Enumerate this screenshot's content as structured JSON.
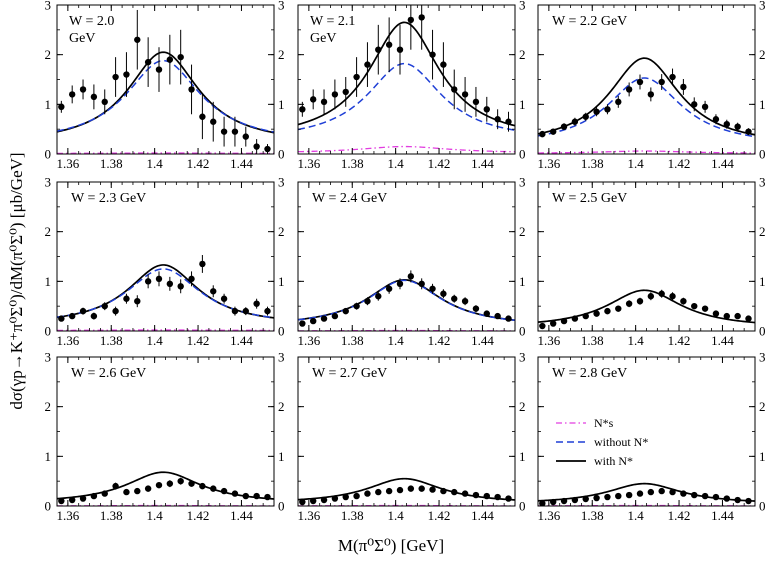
{
  "figure": {
    "x_axis_label": "M(π⁰Σ⁰) [GeV]",
    "y_axis_label": "dσ(γp→K⁺π⁰Σ⁰)/dM(π⁰Σ⁰) [μb/GeV]",
    "legend": {
      "placement": "inside panel W = 2.8 GeV, right",
      "entries": [
        {
          "label": "N*s",
          "style": "dash-dot",
          "color": "#e23ee0"
        },
        {
          "label": "without N*",
          "style": "dashed",
          "color": "#1f3fd6"
        },
        {
          "label": "with N*",
          "style": "solid",
          "color": "#000000"
        }
      ]
    }
  },
  "chart_data": {
    "type": "line",
    "layout": "3x3 grid of panels sharing axes",
    "xlim": [
      1.355,
      1.455
    ],
    "ylim": [
      0,
      3
    ],
    "x_ticks": [
      "1.36",
      "1.38",
      "1.4",
      "1.42",
      "1.44"
    ],
    "x_tick_values": [
      1.36,
      1.38,
      1.4,
      1.42,
      1.44
    ],
    "y_ticks": [
      "0",
      "1",
      "2",
      "3"
    ],
    "y_tick_values": [
      0,
      1,
      2,
      3
    ],
    "data_x": [
      1.357,
      1.362,
      1.367,
      1.372,
      1.377,
      1.382,
      1.387,
      1.392,
      1.397,
      1.402,
      1.407,
      1.412,
      1.417,
      1.422,
      1.427,
      1.432,
      1.437,
      1.442,
      1.447,
      1.452
    ],
    "panels": [
      {
        "label": "W = 2.0 GeV",
        "label_lines": [
          "W = 2.0",
          "GeV"
        ],
        "data_y": [
          0.95,
          1.2,
          1.3,
          1.15,
          1.05,
          1.55,
          1.6,
          2.3,
          1.85,
          1.7,
          1.9,
          1.95,
          1.3,
          0.75,
          0.65,
          0.45,
          0.45,
          0.35,
          0.15,
          0.1
        ],
        "data_err": [
          0.12,
          0.18,
          0.2,
          0.25,
          0.25,
          0.4,
          0.45,
          0.6,
          0.5,
          0.45,
          0.5,
          0.55,
          0.5,
          0.45,
          0.4,
          0.3,
          0.3,
          0.2,
          0.15,
          0.1
        ],
        "series": [
          {
            "name": "with N*",
            "peak": 2.05,
            "base": 0.18,
            "width": 0.02
          },
          {
            "name": "without N*",
            "peak": 1.88,
            "base": 0.2,
            "width": 0.021
          },
          {
            "name": "N*s",
            "peak": 0.02,
            "base": 0.01,
            "width": 0.03
          }
        ]
      },
      {
        "label": "W = 2.1 GeV",
        "label_lines": [
          "W = 2.1",
          "GeV"
        ],
        "data_y": [
          0.9,
          1.1,
          1.05,
          1.2,
          1.25,
          1.55,
          1.8,
          2.1,
          2.2,
          2.1,
          2.7,
          2.75,
          2.0,
          1.8,
          1.3,
          1.2,
          1.05,
          0.9,
          0.7,
          0.65
        ],
        "data_err": [
          0.15,
          0.2,
          0.25,
          0.3,
          0.3,
          0.4,
          0.45,
          0.5,
          0.55,
          0.5,
          0.6,
          0.65,
          0.5,
          0.45,
          0.4,
          0.35,
          0.3,
          0.25,
          0.2,
          0.2
        ],
        "series": [
          {
            "name": "with N*",
            "peak": 2.65,
            "base": 0.25,
            "width": 0.02
          },
          {
            "name": "without N*",
            "peak": 1.82,
            "base": 0.25,
            "width": 0.021
          },
          {
            "name": "N*s",
            "peak": 0.15,
            "base": 0.02,
            "width": 0.025
          }
        ]
      },
      {
        "label": "W = 2.2 GeV",
        "label_lines": [
          "W = 2.2 GeV"
        ],
        "data_y": [
          0.4,
          0.45,
          0.55,
          0.65,
          0.75,
          0.85,
          0.9,
          1.05,
          1.3,
          1.45,
          1.2,
          1.45,
          1.55,
          1.35,
          1.0,
          0.95,
          0.7,
          0.6,
          0.55,
          0.45
        ],
        "data_err": [
          0.06,
          0.06,
          0.07,
          0.08,
          0.08,
          0.09,
          0.1,
          0.12,
          0.14,
          0.15,
          0.14,
          0.16,
          0.17,
          0.16,
          0.14,
          0.12,
          0.1,
          0.09,
          0.08,
          0.07
        ],
        "series": [
          {
            "name": "with N*",
            "peak": 1.93,
            "base": 0.15,
            "width": 0.02
          },
          {
            "name": "without N*",
            "peak": 1.53,
            "base": 0.15,
            "width": 0.021
          },
          {
            "name": "N*s",
            "peak": 0.06,
            "base": 0.01,
            "width": 0.025
          }
        ]
      },
      {
        "label": "W = 2.3 GeV",
        "label_lines": [
          "W = 2.3 GeV"
        ],
        "data_y": [
          0.25,
          0.3,
          0.4,
          0.3,
          0.5,
          0.4,
          0.65,
          0.6,
          1.0,
          1.05,
          0.95,
          0.9,
          1.05,
          1.35,
          0.8,
          0.65,
          0.4,
          0.4,
          0.55,
          0.4
        ],
        "data_err": [
          0.05,
          0.06,
          0.07,
          0.07,
          0.08,
          0.09,
          0.1,
          0.12,
          0.14,
          0.15,
          0.14,
          0.14,
          0.15,
          0.18,
          0.12,
          0.1,
          0.09,
          0.08,
          0.1,
          0.09
        ],
        "series": [
          {
            "name": "with N*",
            "peak": 1.33,
            "base": 0.1,
            "width": 0.02
          },
          {
            "name": "without N*",
            "peak": 1.25,
            "base": 0.1,
            "width": 0.021
          },
          {
            "name": "N*s",
            "peak": 0.02,
            "base": 0.01,
            "width": 0.03
          }
        ]
      },
      {
        "label": "W = 2.4 GeV",
        "label_lines": [
          "W = 2.4 GeV"
        ],
        "data_y": [
          0.15,
          0.2,
          0.25,
          0.3,
          0.4,
          0.5,
          0.6,
          0.7,
          0.85,
          0.95,
          1.1,
          0.95,
          0.85,
          0.75,
          0.65,
          0.6,
          0.45,
          0.35,
          0.3,
          0.25
        ],
        "data_err": [
          0.04,
          0.04,
          0.05,
          0.05,
          0.06,
          0.07,
          0.08,
          0.09,
          0.1,
          0.11,
          0.12,
          0.11,
          0.1,
          0.09,
          0.08,
          0.08,
          0.07,
          0.06,
          0.05,
          0.05
        ],
        "series": [
          {
            "name": "with N*",
            "peak": 1.03,
            "base": 0.08,
            "width": 0.021
          },
          {
            "name": "without N*",
            "peak": 1.02,
            "base": 0.08,
            "width": 0.021
          },
          {
            "name": "N*s",
            "peak": 0.01,
            "base": 0.0,
            "width": 0.03
          }
        ]
      },
      {
        "label": "W = 2.5 GeV",
        "label_lines": [
          "W = 2.5 GeV"
        ],
        "data_y": [
          0.1,
          0.15,
          0.2,
          0.25,
          0.3,
          0.35,
          0.4,
          0.45,
          0.55,
          0.6,
          0.7,
          0.75,
          0.7,
          0.6,
          0.5,
          0.45,
          0.35,
          0.3,
          0.3,
          0.25
        ],
        "data_err": [
          0.03,
          0.03,
          0.04,
          0.04,
          0.05,
          0.05,
          0.06,
          0.06,
          0.07,
          0.07,
          0.08,
          0.08,
          0.08,
          0.07,
          0.06,
          0.06,
          0.05,
          0.05,
          0.05,
          0.04
        ],
        "series": [
          {
            "name": "with N*",
            "peak": 0.82,
            "base": 0.06,
            "width": 0.021
          }
        ]
      },
      {
        "label": "W = 2.6 GeV",
        "label_lines": [
          "W = 2.6 GeV"
        ],
        "data_y": [
          0.1,
          0.12,
          0.15,
          0.2,
          0.25,
          0.4,
          0.28,
          0.3,
          0.35,
          0.42,
          0.45,
          0.5,
          0.45,
          0.4,
          0.35,
          0.3,
          0.25,
          0.2,
          0.2,
          0.18
        ],
        "data_err": [
          0.03,
          0.03,
          0.04,
          0.04,
          0.05,
          0.07,
          0.05,
          0.05,
          0.06,
          0.06,
          0.07,
          0.07,
          0.06,
          0.06,
          0.05,
          0.05,
          0.04,
          0.04,
          0.04,
          0.03
        ],
        "series": [
          {
            "name": "with N*",
            "peak": 0.68,
            "base": 0.05,
            "width": 0.021
          },
          {
            "name": "N*s",
            "peak": 0.01,
            "base": 0.0,
            "width": 0.03
          }
        ]
      },
      {
        "label": "W = 2.7 GeV",
        "label_lines": [
          "W = 2.7 GeV"
        ],
        "data_y": [
          0.08,
          0.1,
          0.12,
          0.15,
          0.18,
          0.2,
          0.25,
          0.28,
          0.3,
          0.32,
          0.35,
          0.35,
          0.33,
          0.3,
          0.28,
          0.25,
          0.22,
          0.2,
          0.18,
          0.15
        ],
        "data_err": [
          0.02,
          0.03,
          0.03,
          0.03,
          0.04,
          0.04,
          0.04,
          0.05,
          0.05,
          0.05,
          0.05,
          0.05,
          0.05,
          0.05,
          0.04,
          0.04,
          0.04,
          0.04,
          0.03,
          0.03
        ],
        "series": [
          {
            "name": "with N*",
            "peak": 0.55,
            "base": 0.05,
            "width": 0.021
          },
          {
            "name": "N*s",
            "peak": 0.01,
            "base": 0.0,
            "width": 0.03
          }
        ]
      },
      {
        "label": "W = 2.8 GeV",
        "label_lines": [
          "W = 2.8 GeV"
        ],
        "data_y": [
          0.05,
          0.08,
          0.1,
          0.12,
          0.14,
          0.16,
          0.18,
          0.2,
          0.22,
          0.25,
          0.28,
          0.3,
          0.28,
          0.25,
          0.22,
          0.2,
          0.18,
          0.15,
          0.12,
          0.1
        ],
        "data_err": [
          0.02,
          0.02,
          0.03,
          0.03,
          0.03,
          0.03,
          0.04,
          0.04,
          0.04,
          0.04,
          0.05,
          0.05,
          0.05,
          0.04,
          0.04,
          0.04,
          0.03,
          0.03,
          0.03,
          0.03
        ],
        "series": [
          {
            "name": "with N*",
            "peak": 0.45,
            "base": 0.04,
            "width": 0.021
          },
          {
            "name": "N*s",
            "peak": 0.01,
            "base": 0.0,
            "width": 0.03
          }
        ]
      }
    ],
    "curve_center": 1.404
  }
}
